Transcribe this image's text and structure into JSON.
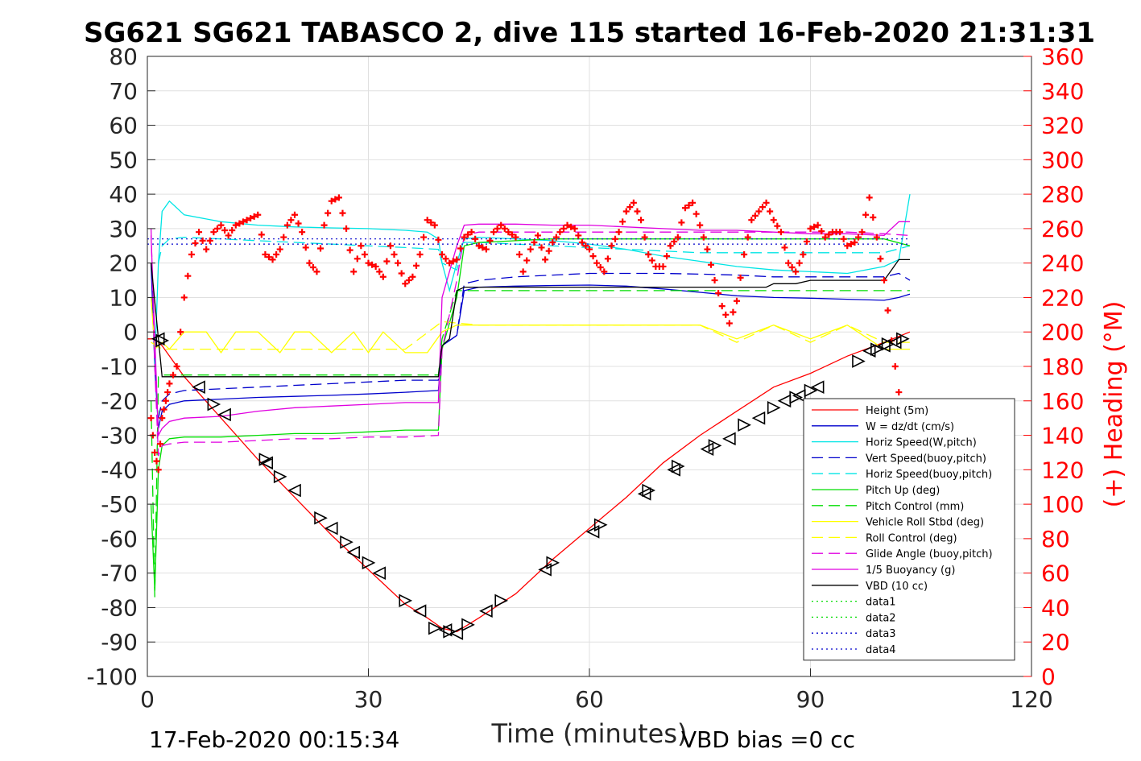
{
  "chart_data": {
    "type": "line",
    "title": "SG621 SG621 TABASCO 2, dive 115 started 16-Feb-2020 21:31:31",
    "xlabel": "Time (minutes)",
    "ylabel_right": "(+) Heading (°M)",
    "xlim": [
      0,
      120
    ],
    "ylim": [
      -100,
      80
    ],
    "ylim_right": [
      0,
      360
    ],
    "x_ticks": [
      "0",
      "30",
      "60",
      "90",
      "120"
    ],
    "y_ticks": [
      "-100",
      "-90",
      "-80",
      "-70",
      "-60",
      "-50",
      "-40",
      "-30",
      "-20",
      "-10",
      "0",
      "10",
      "20",
      "30",
      "40",
      "50",
      "60",
      "70",
      "80"
    ],
    "y_ticks_right": [
      "0",
      "20",
      "40",
      "60",
      "80",
      "100",
      "120",
      "140",
      "160",
      "180",
      "200",
      "220",
      "240",
      "260",
      "280",
      "300",
      "320",
      "340",
      "360"
    ],
    "grid": true,
    "legend_position": "lower-right",
    "footer_left": "17-Feb-2020 00:15:34",
    "footer_right": "VBD bias =0 cc",
    "series": [
      {
        "name": "Height (5m)",
        "color": "#ff0000",
        "style": "solid",
        "x": [
          0,
          1,
          2,
          5,
          10,
          15,
          20,
          25,
          30,
          35,
          38,
          40,
          42,
          45,
          50,
          55,
          60,
          65,
          70,
          75,
          80,
          85,
          90,
          95,
          100,
          103.5
        ],
        "y": [
          -2,
          -2,
          -4,
          -13,
          -25,
          -37,
          -48,
          -59,
          -69,
          -79,
          -83,
          -86,
          -87,
          -83,
          -76,
          -66,
          -57,
          -48,
          -38,
          -30,
          -23,
          -16,
          -12,
          -7,
          -3,
          0
        ]
      },
      {
        "name": "W = dz/dt (cm/s)",
        "color": "#0000cc",
        "style": "solid",
        "x": [
          0.5,
          1,
          1.5,
          2,
          3,
          5,
          10,
          15,
          20,
          25,
          30,
          35,
          39.5,
          40,
          42,
          43,
          45,
          50,
          55,
          60,
          65,
          70,
          75,
          80,
          85,
          90,
          95,
          100,
          102,
          103.5
        ],
        "y": [
          20,
          -10,
          -28,
          -23,
          -21,
          -20,
          -19.5,
          -19,
          -18.7,
          -18.4,
          -18,
          -17.5,
          -17,
          -4,
          -1,
          12,
          13,
          13.3,
          13.5,
          13.6,
          13.3,
          12.5,
          11.5,
          10.5,
          10,
          9.8,
          9.5,
          9.2,
          10,
          11
        ]
      },
      {
        "name": "Horiz Speed(W,pitch)",
        "color": "#00e5e5",
        "style": "solid",
        "x": [
          1,
          1.5,
          2,
          3,
          5,
          10,
          15,
          20,
          25,
          30,
          35,
          38,
          39.5,
          40,
          41,
          42,
          43,
          45,
          50,
          55,
          60,
          65,
          70,
          75,
          80,
          85,
          90,
          95,
          100,
          102,
          103.5
        ],
        "y": [
          -10,
          20,
          35,
          38,
          34,
          32,
          31,
          30.5,
          30.2,
          30,
          29.5,
          29,
          27,
          20,
          12,
          20,
          27,
          27.5,
          27,
          26.5,
          25.5,
          24,
          22,
          20.5,
          19,
          18,
          17.5,
          17,
          19,
          21,
          40
        ]
      },
      {
        "name": "Vert Speed(buoy,pitch)",
        "color": "#0000cc",
        "style": "dashed",
        "x": [
          1.5,
          2,
          3,
          5,
          10,
          15,
          20,
          25,
          30,
          35,
          39.5,
          40,
          42,
          43,
          45,
          50,
          55,
          60,
          65,
          70,
          75,
          80,
          85,
          90,
          95,
          100,
          102,
          103.5
        ],
        "y": [
          -25,
          -20,
          -18,
          -17,
          -16.5,
          -16,
          -15.5,
          -15,
          -14.5,
          -14,
          -14,
          -4,
          -1,
          14,
          15,
          16,
          16.5,
          17,
          17,
          17,
          16.8,
          16.5,
          16,
          16,
          16,
          16,
          17,
          15
        ]
      },
      {
        "name": "Horiz Speed(buoy,pitch)",
        "color": "#00e5e5",
        "style": "dashed",
        "x": [
          1.5,
          2,
          3,
          5,
          10,
          15,
          20,
          25,
          30,
          35,
          39.5,
          40,
          42,
          43,
          45,
          50,
          55,
          60,
          65,
          70,
          75,
          80,
          85,
          90,
          95,
          100,
          103.5
        ],
        "y": [
          20,
          25,
          27,
          27.5,
          27,
          26.5,
          26,
          25.5,
          25,
          24.5,
          24,
          20,
          18,
          26,
          26,
          25.5,
          25,
          24.5,
          24,
          23.5,
          23,
          23,
          23,
          23,
          23,
          23,
          25
        ]
      },
      {
        "name": "Pitch Up (deg)",
        "color": "#00dd00",
        "style": "solid",
        "x": [
          0.5,
          1,
          1.5,
          2,
          3,
          5,
          10,
          15,
          20,
          25,
          30,
          35,
          39.5,
          40,
          42,
          43,
          45,
          50,
          55,
          60,
          65,
          70,
          75,
          80,
          85,
          90,
          95,
          100,
          103.5
        ],
        "y": [
          -50,
          -75,
          -40,
          -33,
          -31,
          -30.5,
          -30.5,
          -30,
          -29.5,
          -29.5,
          -29,
          -28.5,
          -28.5,
          -5,
          10,
          25,
          26,
          26.5,
          27,
          27,
          27,
          27,
          27,
          27,
          27,
          27,
          27,
          27,
          25
        ]
      },
      {
        "name": "Pitch Control (mm)",
        "color": "#00dd00",
        "style": "dashed",
        "x": [
          0.5,
          1,
          1.5,
          2,
          39.5,
          40,
          42,
          43,
          103.5
        ],
        "y": [
          -20,
          -77,
          -13,
          -12.5,
          -12.5,
          -2,
          12,
          12,
          12
        ]
      },
      {
        "name": "Vehicle Roll Stbd (deg)",
        "color": "#ffff00",
        "style": "solid",
        "x": [
          0.5,
          1,
          2,
          3,
          5,
          8,
          10,
          12,
          15,
          18,
          20,
          22,
          25,
          28,
          30,
          32,
          35,
          38,
          40,
          42,
          45,
          50,
          55,
          60,
          65,
          70,
          75,
          80,
          85,
          90,
          95,
          100,
          103.5
        ],
        "y": [
          10,
          -5,
          -3,
          -5,
          0,
          0,
          -6,
          0,
          0,
          -6,
          0,
          0,
          -6,
          0,
          -6,
          0,
          -6,
          -6,
          0,
          2,
          2,
          2,
          2,
          2,
          2,
          2,
          2,
          -2,
          2,
          -2,
          2,
          -5,
          -5
        ]
      },
      {
        "name": "Roll Control (deg)",
        "color": "#ffff00",
        "style": "dashed",
        "x": [
          0.5,
          2,
          5,
          10,
          15,
          20,
          25,
          30,
          35,
          40,
          45,
          50,
          55,
          60,
          65,
          70,
          75,
          80,
          85,
          90,
          95,
          100,
          103.5
        ],
        "y": [
          -3,
          -5,
          -5,
          -5,
          -5,
          -5,
          -5,
          -5,
          -5,
          3,
          2,
          2,
          2,
          2,
          2,
          2,
          2,
          -3,
          2,
          -3,
          2,
          -3,
          -3
        ]
      },
      {
        "name": "Glide Angle (buoy,pitch)",
        "color": "#e000e0",
        "style": "dashed",
        "x": [
          0.5,
          1,
          1.5,
          2,
          3,
          5,
          10,
          15,
          20,
          25,
          30,
          35,
          39.5,
          40,
          42,
          43,
          45,
          50,
          55,
          60,
          65,
          70,
          75,
          80,
          85,
          90,
          95,
          100,
          103.5
        ],
        "y": [
          30,
          -10,
          -36,
          -33,
          -32.5,
          -32,
          -32,
          -31.5,
          -31,
          -31,
          -30.5,
          -30.5,
          -30,
          -5,
          15,
          28,
          29,
          29,
          29,
          29,
          29,
          29,
          29,
          29,
          29,
          29,
          29,
          28.5,
          28
        ]
      },
      {
        "name": "1/5 Buoyancy (g)",
        "color": "#e000e0",
        "style": "solid",
        "x": [
          0.5,
          1.5,
          2,
          3,
          5,
          10,
          15,
          20,
          25,
          30,
          35,
          39.5,
          40,
          42,
          43,
          45,
          50,
          55,
          60,
          65,
          70,
          75,
          80,
          85,
          90,
          95,
          100,
          102,
          103.5
        ],
        "y": [
          28,
          -30,
          -28,
          -26,
          -25,
          -24.5,
          -23,
          -22,
          -21.5,
          -21,
          -20.5,
          -20.5,
          10,
          25,
          31,
          31.3,
          31.3,
          31,
          31,
          30.5,
          30,
          29.5,
          29.5,
          29,
          28.5,
          28.5,
          28,
          32,
          32
        ]
      },
      {
        "name": "VBD (10 cc)",
        "color": "#000000",
        "style": "solid",
        "x": [
          0.5,
          2,
          39.5,
          40,
          41,
          42,
          43,
          84,
          85,
          88,
          90,
          93,
          100,
          101,
          102,
          103.5
        ],
        "y": [
          20,
          -13,
          -13,
          -4,
          -2,
          12,
          13,
          13,
          14,
          14,
          15,
          15,
          15,
          18,
          21,
          21
        ]
      },
      {
        "name": "data1",
        "color": "#00dd00",
        "style": "dotted",
        "x": [],
        "y": []
      },
      {
        "name": "data2",
        "color": "#00dd00",
        "style": "dotted",
        "x": [],
        "y": []
      },
      {
        "name": "data3",
        "color": "#0000cc",
        "style": "dotted",
        "x": [
          0,
          103.5
        ],
        "y": [
          27,
          27
        ]
      },
      {
        "name": "data4",
        "color": "#0000cc",
        "style": "dotted",
        "x": [
          0,
          103.5
        ],
        "y": [
          25.5,
          25.5
        ]
      }
    ],
    "heading": {
      "axis": "right",
      "color": "#ff0000",
      "marker": "+",
      "x": [
        0.5,
        1,
        1.5,
        2,
        2.5,
        3,
        4,
        5,
        6,
        7,
        8,
        9,
        10,
        11,
        12,
        13,
        14,
        15,
        16,
        17,
        18,
        19,
        20,
        21,
        22,
        23,
        24,
        25,
        26,
        27,
        28,
        29,
        30,
        31,
        32,
        33,
        34,
        35,
        36,
        37,
        38,
        39,
        40,
        41,
        42,
        43,
        44,
        45,
        46,
        47,
        48,
        49,
        50,
        51,
        52,
        53,
        54,
        55,
        56,
        57,
        58,
        59,
        60,
        61,
        62,
        63,
        64,
        65,
        66,
        67,
        68,
        69,
        70,
        71,
        72,
        73,
        74,
        75,
        76,
        77,
        78,
        79,
        80,
        81,
        82,
        83,
        84,
        85,
        86,
        87,
        88,
        89,
        90,
        91,
        92,
        93,
        94,
        95,
        96,
        97,
        98,
        99,
        100,
        101,
        102
      ],
      "y": [
        150,
        130,
        120,
        150,
        160,
        170,
        180,
        220,
        245,
        258,
        248,
        258,
        262,
        256,
        262,
        264,
        266,
        268,
        245,
        242,
        248,
        262,
        268,
        258,
        240,
        235,
        262,
        276,
        278,
        260,
        235,
        250,
        240,
        238,
        232,
        250,
        240,
        228,
        232,
        245,
        265,
        262,
        245,
        240,
        242,
        255,
        258,
        250,
        248,
        258,
        262,
        258,
        255,
        235,
        248,
        256,
        242,
        252,
        258,
        262,
        260,
        252,
        248,
        240,
        235,
        250,
        258,
        270,
        275,
        265,
        245,
        238,
        238,
        250,
        255,
        272,
        275,
        262,
        248,
        230,
        215,
        205,
        218,
        245,
        265,
        270,
        275,
        265,
        258,
        240,
        235,
        245,
        260,
        262,
        255,
        258,
        258,
        250,
        252,
        258,
        278,
        255,
        230,
        195,
        165
      ]
    },
    "markers": {
      "axis": "left",
      "color": "#000000",
      "x": [
        1.5,
        2,
        7,
        9,
        10.5,
        16,
        16.2,
        18,
        20,
        23.5,
        25,
        27,
        28,
        30,
        31.5,
        35,
        37,
        39,
        40.5,
        41,
        42,
        43.5,
        46,
        48,
        54,
        55,
        60.5,
        61.5,
        67.5,
        68,
        71.5,
        72,
        76,
        77,
        79,
        81,
        83,
        85,
        86.5,
        88,
        88.5,
        90,
        91,
        96.5,
        98,
        99,
        100,
        100.5,
        101.5,
        102.5
      ],
      "y": [
        -2,
        -2.5,
        -16,
        -21,
        -24,
        -37,
        -38,
        -42,
        -46,
        -54,
        -57,
        -61,
        -64,
        -67,
        -70,
        -78,
        -81,
        -86,
        -86.5,
        -87,
        -87.5,
        -85,
        -81,
        -78,
        -69,
        -67,
        -58,
        -56,
        -47,
        -46,
        -40,
        -39,
        -34,
        -33,
        -31,
        -27,
        -25,
        -22,
        -20,
        -19,
        -18.5,
        -17,
        -16,
        -8.5,
        -5.5,
        -5,
        -4,
        -3.5,
        -3,
        -2
      ]
    }
  }
}
